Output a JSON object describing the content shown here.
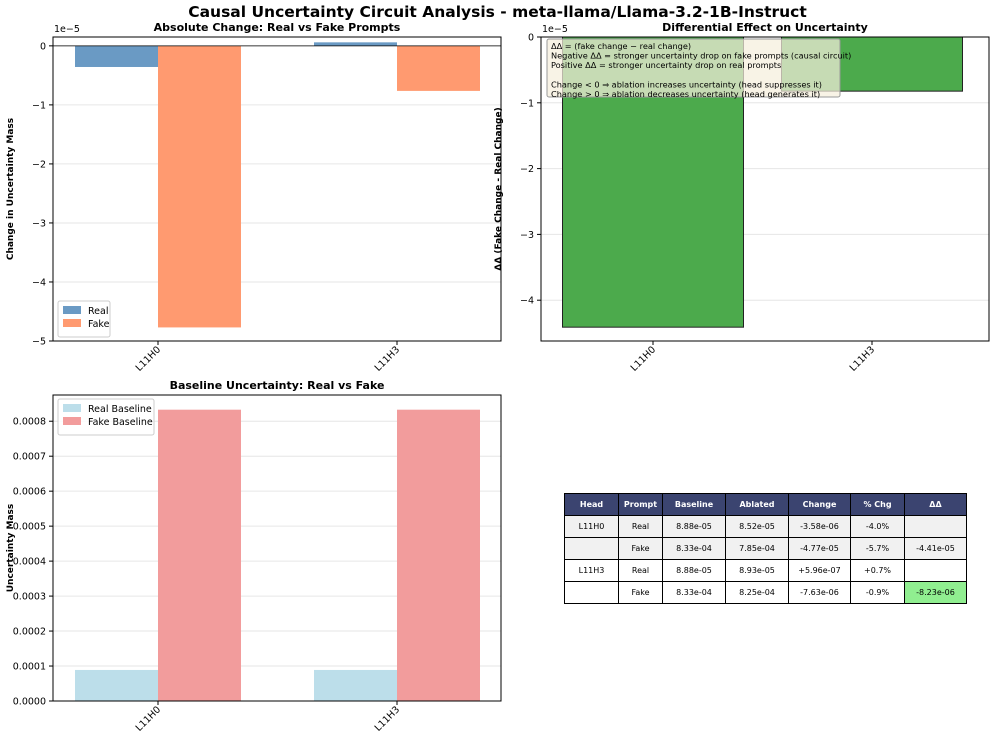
{
  "figure": {
    "title": "Causal Uncertainty Circuit Analysis - meta-llama/Llama-3.2-1B-Instruct"
  },
  "colors": {
    "real": "#6a9ac4",
    "fake": "#ff9a70",
    "diff": "#4caa4c",
    "real_baseline": "#bcdeea",
    "fake_baseline": "#f29c9c",
    "table_header": "#3b4470",
    "table_highlight": "#90ee90"
  },
  "chart_data": [
    {
      "id": "absolute_change",
      "type": "bar",
      "title": "Absolute Change: Real vs Fake Prompts",
      "xlabel": "",
      "ylabel": "Change in Uncertainty Mass",
      "categories": [
        "L11H0",
        "L11H3"
      ],
      "series": [
        {
          "name": "Real",
          "values": [
            -3.58e-06,
            5.96e-07
          ]
        },
        {
          "name": "Fake",
          "values": [
            -4.77e-05,
            -7.63e-06
          ]
        }
      ],
      "ylim": [
        -5e-05,
        1.5e-06
      ],
      "yticks": [
        0,
        -1,
        -2,
        -3,
        -4,
        -5
      ],
      "ytick_scale": 1e-05,
      "offset_label": "1e−5",
      "legend": {
        "position": "lower-left",
        "entries": [
          "Real",
          "Fake"
        ]
      },
      "grid": true
    },
    {
      "id": "differential_effect",
      "type": "bar",
      "title": "Differential Effect on Uncertainty",
      "xlabel": "",
      "ylabel": "ΔΔ (Fake Change - Real Change)",
      "categories": [
        "L11H0",
        "L11H3"
      ],
      "series": [
        {
          "name": "ΔΔ",
          "values": [
            -4.41e-05,
            -8.23e-06
          ]
        }
      ],
      "ylim": [
        -4.62e-05,
        0
      ],
      "yticks": [
        0,
        -1,
        -2,
        -3,
        -4
      ],
      "ytick_scale": 1e-05,
      "offset_label": "1e−5",
      "annotation": [
        "ΔΔ = (fake change − real change)",
        "Negative ΔΔ = stronger uncertainty drop on fake prompts (causal circuit)",
        "Positive ΔΔ = stronger uncertainty drop on real prompts",
        "",
        "Change < 0 ⇒ ablation increases uncertainty (head suppresses it)",
        "Change > 0 ⇒ ablation decreases uncertainty (head generates it)"
      ],
      "grid": true
    },
    {
      "id": "baseline_uncertainty",
      "type": "bar",
      "title": "Baseline Uncertainty: Real vs Fake",
      "xlabel": "",
      "ylabel": "Uncertainty Mass",
      "categories": [
        "L11H0",
        "L11H3"
      ],
      "series": [
        {
          "name": "Real Baseline",
          "values": [
            8.88e-05,
            8.88e-05
          ]
        },
        {
          "name": "Fake Baseline",
          "values": [
            0.000833,
            0.000833
          ]
        }
      ],
      "ylim": [
        0,
        0.000875
      ],
      "yticks": [
        0,
        0.0001,
        0.0002,
        0.0003,
        0.0004,
        0.0005,
        0.0006,
        0.0007,
        0.0008
      ],
      "ytick_labels": [
        "0.0000",
        "0.0001",
        "0.0002",
        "0.0003",
        "0.0004",
        "0.0005",
        "0.0006",
        "0.0007",
        "0.0008"
      ],
      "legend": {
        "position": "top-left",
        "entries": [
          "Real Baseline",
          "Fake Baseline"
        ]
      },
      "grid": true
    },
    {
      "id": "results_table",
      "type": "table",
      "columns": [
        "Head",
        "Prompt",
        "Baseline",
        "Ablated",
        "Change",
        "% Chg",
        "ΔΔ"
      ],
      "rows": [
        [
          "L11H0",
          "Real",
          "8.88e-05",
          "8.52e-05",
          "-3.58e-06",
          "-4.0%",
          ""
        ],
        [
          "",
          "Fake",
          "8.33e-04",
          "7.85e-04",
          "-4.77e-05",
          "-5.7%",
          "-4.41e-05"
        ],
        [
          "L11H3",
          "Real",
          "8.88e-05",
          "8.93e-05",
          "+5.96e-07",
          "+0.7%",
          ""
        ],
        [
          "",
          "Fake",
          "8.33e-04",
          "8.25e-04",
          "-7.63e-06",
          "-0.9%",
          "-8.23e-06"
        ]
      ]
    }
  ]
}
